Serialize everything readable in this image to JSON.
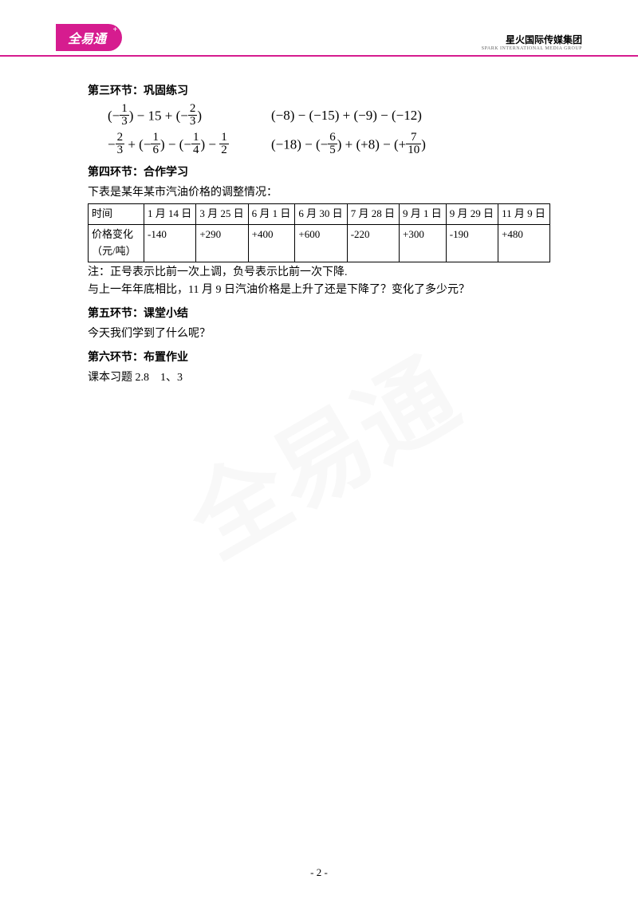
{
  "header": {
    "logo_text": "全易通",
    "company_name": "星火国际传媒集团",
    "company_sub": "SPARK INTERNATIONAL MEDIA GROUP"
  },
  "section3": {
    "title": "第三环节：巩固练习",
    "formula1_parts": {
      "a": "1",
      "b": "3",
      "mid": ") − 15 + (−",
      "c": "2",
      "d": "3",
      "end": ")"
    },
    "formula2": "(−8) − (−15) + (−9) − (−12)",
    "formula3_parts": {
      "a": "2",
      "b": "3",
      "c": "1",
      "d": "6",
      "e": "1",
      "f": "4",
      "g": "1",
      "h": "2"
    },
    "formula4_parts": {
      "pre": "(−18) − (−",
      "a": "6",
      "b": "5",
      "mid": ") + (+8) − (+",
      "c": "7",
      "d": "10",
      "end": ")"
    }
  },
  "section4": {
    "title": "第四环节：合作学习",
    "intro": "下表是某年某市汽油价格的调整情况：",
    "table": {
      "row1_label": "时间",
      "dates": [
        "1 月 14 日",
        "3 月 25 日",
        "6 月 1 日",
        "6 月 30 日",
        "7 月 28 日",
        "9 月 1 日",
        "9 月 29 日",
        "11 月 9 日"
      ],
      "row2_label": "价格变化（元/吨）",
      "values": [
        "-140",
        "+290",
        "+400",
        "+600",
        "-220",
        "+300",
        "-190",
        "+480"
      ]
    },
    "note": "注：正号表示比前一次上调，负号表示比前一次下降.",
    "question": "与上一年年底相比，11 月 9 日汽油价格是上升了还是下降了？变化了多少元？"
  },
  "section5": {
    "title": "第五环节：课堂小结",
    "text": "今天我们学到了什么呢？"
  },
  "section6": {
    "title": "第六环节：布置作业",
    "text": "课本习题 2.8　1、3"
  },
  "page_number": "- 2 -",
  "watermark": "全易通"
}
